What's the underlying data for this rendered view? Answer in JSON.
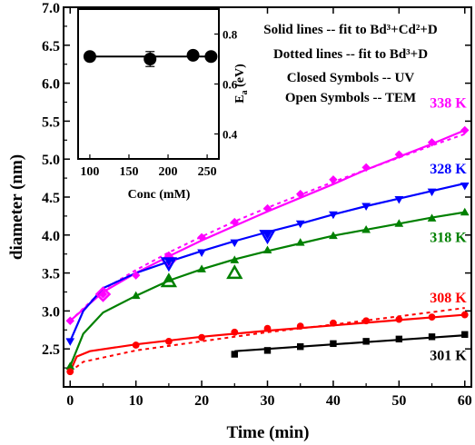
{
  "chart_data": [
    {
      "type": "scatter",
      "xlabel": "Time (min)",
      "ylabel": "diameter (nm)",
      "xlim": [
        -1,
        61
      ],
      "ylim": [
        2.0,
        7.0
      ],
      "xticks": [
        0,
        10,
        20,
        30,
        40,
        50,
        60
      ],
      "yticks": [
        2.5,
        3.0,
        3.5,
        4.0,
        4.5,
        5.0,
        5.5,
        6.0,
        6.5,
        7.0
      ],
      "xtick_labels": [
        "0",
        "10",
        "20",
        "30",
        "40",
        "50",
        "60"
      ],
      "ytick_labels": [
        "2.5",
        "3.0",
        "3.5",
        "4.0",
        "4.5",
        "5.0",
        "5.5",
        "6.0",
        "6.5",
        "7.0"
      ],
      "notes": [
        "Solid lines -- fit to Bd³+Cd²+D",
        "Dotted lines -- fit to Bd³+D",
        "Closed Symbols -- UV",
        "Open Symbols -- TEM"
      ],
      "series": [
        {
          "name": "338 K",
          "color": "#ff00ff",
          "marker": "diamond",
          "x": [
            0,
            5,
            10,
            15,
            20,
            25,
            30,
            35,
            40,
            45,
            50,
            55,
            60
          ],
          "values": [
            2.87,
            3.22,
            3.47,
            3.73,
            3.97,
            4.17,
            4.35,
            4.54,
            4.73,
            4.89,
            5.06,
            5.22,
            5.38
          ],
          "open_points": [
            {
              "x": 5,
              "y": 3.22
            },
            {
              "x": 15,
              "y": 3.67
            }
          ],
          "fit_solid": [
            [
              0,
              2.87
            ],
            [
              5,
              3.25
            ],
            [
              10,
              3.5
            ],
            [
              15,
              3.72
            ],
            [
              20,
              3.93
            ],
            [
              25,
              4.12
            ],
            [
              30,
              4.31
            ],
            [
              35,
              4.49
            ],
            [
              40,
              4.67
            ],
            [
              45,
              4.86
            ],
            [
              50,
              5.03
            ],
            [
              55,
              5.2
            ],
            [
              60,
              5.38
            ]
          ],
          "fit_dotted": [
            [
              0,
              2.87
            ],
            [
              5,
              3.28
            ],
            [
              10,
              3.54
            ],
            [
              15,
              3.77
            ],
            [
              20,
              3.98
            ],
            [
              25,
              4.18
            ],
            [
              30,
              4.36
            ],
            [
              35,
              4.53
            ],
            [
              40,
              4.7
            ],
            [
              45,
              4.86
            ],
            [
              50,
              5.02
            ],
            [
              55,
              5.18
            ],
            [
              60,
              5.33
            ]
          ]
        },
        {
          "name": "328 K",
          "color": "#0000ff",
          "marker": "triangle-down",
          "x": [
            0,
            15,
            20,
            25,
            30,
            35,
            40,
            45,
            50,
            55,
            60
          ],
          "values": [
            2.6,
            3.65,
            3.77,
            3.9,
            4.0,
            4.15,
            4.27,
            4.38,
            4.47,
            4.57,
            4.65
          ],
          "open_points": [
            {
              "x": 15,
              "y": 3.63
            },
            {
              "x": 30,
              "y": 3.99
            }
          ],
          "fit_solid": [
            [
              0,
              2.6
            ],
            [
              2,
              3.0
            ],
            [
              5,
              3.3
            ],
            [
              10,
              3.5
            ],
            [
              15,
              3.65
            ],
            [
              20,
              3.79
            ],
            [
              25,
              3.92
            ],
            [
              30,
              4.04
            ],
            [
              35,
              4.15
            ],
            [
              40,
              4.27
            ],
            [
              45,
              4.38
            ],
            [
              50,
              4.48
            ],
            [
              55,
              4.58
            ],
            [
              60,
              4.68
            ]
          ]
        },
        {
          "name": "318 K",
          "color": "#008000",
          "marker": "triangle-up",
          "x": [
            0,
            10,
            15,
            20,
            25,
            30,
            35,
            40,
            45,
            50,
            55,
            60
          ],
          "values": [
            2.27,
            3.2,
            3.42,
            3.55,
            3.67,
            3.8,
            3.9,
            3.99,
            4.07,
            4.15,
            4.22,
            4.3
          ],
          "open_points": [
            {
              "x": 15,
              "y": 3.39
            },
            {
              "x": 25,
              "y": 3.5
            }
          ],
          "fit_solid": [
            [
              0,
              2.27
            ],
            [
              2,
              2.7
            ],
            [
              5,
              2.98
            ],
            [
              10,
              3.2
            ],
            [
              15,
              3.4
            ],
            [
              20,
              3.55
            ],
            [
              25,
              3.68
            ],
            [
              30,
              3.79
            ],
            [
              35,
              3.89
            ],
            [
              40,
              3.99
            ],
            [
              45,
              4.07
            ],
            [
              50,
              4.15
            ],
            [
              55,
              4.23
            ],
            [
              60,
              4.3
            ]
          ]
        },
        {
          "name": "308 K",
          "color": "#ff0000",
          "marker": "circle",
          "x": [
            0,
            10,
            15,
            20,
            25,
            30,
            35,
            40,
            45,
            50,
            55,
            60
          ],
          "values": [
            2.2,
            2.55,
            2.6,
            2.65,
            2.72,
            2.77,
            2.8,
            2.84,
            2.87,
            2.89,
            2.92,
            2.95
          ],
          "fit_solid": [
            [
              0,
              2.2
            ],
            [
              1,
              2.4
            ],
            [
              3,
              2.47
            ],
            [
              10,
              2.56
            ],
            [
              20,
              2.66
            ],
            [
              30,
              2.74
            ],
            [
              40,
              2.81
            ],
            [
              50,
              2.88
            ],
            [
              60,
              2.95
            ]
          ],
          "fit_dotted": [
            [
              0,
              2.2
            ],
            [
              2,
              2.33
            ],
            [
              10,
              2.48
            ],
            [
              20,
              2.6
            ],
            [
              30,
              2.72
            ],
            [
              40,
              2.82
            ],
            [
              50,
              2.93
            ],
            [
              60,
              3.04
            ]
          ]
        },
        {
          "name": "301 K",
          "color": "#000000",
          "marker": "square",
          "x": [
            25,
            30,
            35,
            40,
            45,
            50,
            55,
            60
          ],
          "values": [
            2.43,
            2.48,
            2.53,
            2.57,
            2.6,
            2.63,
            2.66,
            2.69
          ],
          "fit_solid": [
            [
              25,
              2.47
            ],
            [
              30,
              2.5
            ],
            [
              35,
              2.53
            ],
            [
              40,
              2.56
            ],
            [
              45,
              2.59
            ],
            [
              50,
              2.62
            ],
            [
              55,
              2.65
            ],
            [
              60,
              2.68
            ]
          ]
        }
      ]
    },
    {
      "type": "scatter",
      "xlabel": "Conc (mM)",
      "ylabel": "E_a (eV)",
      "ylabel_main": "E",
      "ylabel_sub": "a",
      "ylabel_rest": " (eV)",
      "xlim": [
        85,
        265
      ],
      "ylim": [
        0.3,
        0.9
      ],
      "xticks": [
        100,
        150,
        200,
        250
      ],
      "yticks": [
        0.4,
        0.6,
        0.8
      ],
      "xtick_labels": [
        "100",
        "150",
        "200",
        "250"
      ],
      "ytick_labels": [
        "0.4",
        "0.6",
        "0.8"
      ],
      "series": [
        {
          "color": "#000000",
          "marker": "circle",
          "x": [
            100,
            177,
            232,
            255
          ],
          "values": [
            0.71,
            0.7,
            0.715,
            0.71
          ],
          "errors": [
            0.015,
            0.03,
            0.015,
            0.012
          ],
          "fit": [
            [
              100,
              0.71
            ],
            [
              255,
              0.71
            ]
          ]
        }
      ]
    }
  ]
}
